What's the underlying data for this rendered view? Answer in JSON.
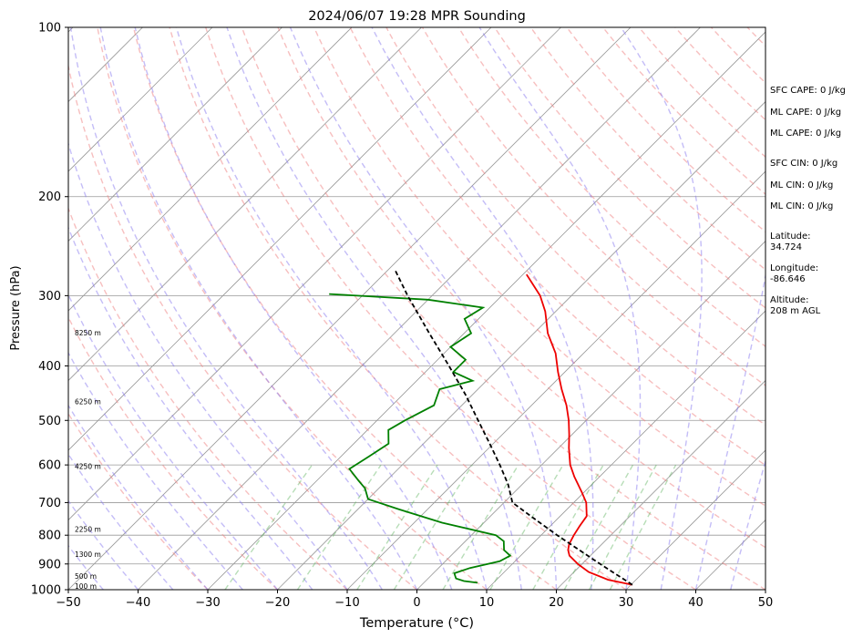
{
  "chart_data": {
    "type": "line",
    "title": "2024/06/07 19:28 MPR Sounding",
    "xlabel": "Temperature (°C)",
    "ylabel": "Pressure (hPa)",
    "xlim": [
      -50,
      50
    ],
    "ylim": [
      1000,
      100
    ],
    "y_scale": "log",
    "skew": "45-degree skew-T",
    "grid": true,
    "x_ticks": [
      "−50",
      "−40",
      "−30",
      "−20",
      "−10",
      "0",
      "10",
      "20",
      "30",
      "40",
      "50"
    ],
    "x_tick_values": [
      -50,
      -40,
      -30,
      -20,
      -10,
      0,
      10,
      20,
      30,
      40,
      50
    ],
    "y_ticks": [
      "1000",
      "900",
      "800",
      "700",
      "600",
      "500",
      "400",
      "300",
      "200",
      "100"
    ],
    "y_tick_values": [
      1000,
      900,
      800,
      700,
      600,
      500,
      400,
      300,
      200,
      100
    ],
    "colors": {
      "temperature": "#ee0000",
      "dewpoint": "#008000",
      "parcel": "#000000",
      "dry_adiabats": "#f08080",
      "moist_adiabats": "#8a7cf0",
      "mixing_ratio": "#5fb45f",
      "isotherms": "#999999",
      "isobars": "#999999"
    },
    "series": [
      {
        "name": "Temperature",
        "style": "solid",
        "points": [
          {
            "p": 980,
            "t": 30.2
          },
          {
            "p": 960,
            "t": 26.0
          },
          {
            "p": 930,
            "t": 22.1
          },
          {
            "p": 900,
            "t": 19.4
          },
          {
            "p": 870,
            "t": 17.0
          },
          {
            "p": 850,
            "t": 16.0
          },
          {
            "p": 830,
            "t": 15.3
          },
          {
            "p": 800,
            "t": 14.7
          },
          {
            "p": 770,
            "t": 14.2
          },
          {
            "p": 740,
            "t": 13.8
          },
          {
            "p": 700,
            "t": 11.8
          },
          {
            "p": 670,
            "t": 9.6
          },
          {
            "p": 630,
            "t": 6.4
          },
          {
            "p": 600,
            "t": 4.1
          },
          {
            "p": 560,
            "t": 1.5
          },
          {
            "p": 530,
            "t": -0.4
          },
          {
            "p": 500,
            "t": -2.5
          },
          {
            "p": 470,
            "t": -5.0
          },
          {
            "p": 440,
            "t": -8.0
          },
          {
            "p": 410,
            "t": -11.0
          },
          {
            "p": 380,
            "t": -14.0
          },
          {
            "p": 350,
            "t": -18.0
          },
          {
            "p": 320,
            "t": -21.5
          },
          {
            "p": 300,
            "t": -24.5
          },
          {
            "p": 275,
            "t": -29.5
          }
        ]
      },
      {
        "name": "Dewpoint",
        "style": "solid",
        "points": [
          {
            "p": 972,
            "t": 7.7
          },
          {
            "p": 965,
            "t": 5.5
          },
          {
            "p": 955,
            "t": 4.0
          },
          {
            "p": 935,
            "t": 3.0
          },
          {
            "p": 915,
            "t": 4.5
          },
          {
            "p": 890,
            "t": 7.8
          },
          {
            "p": 870,
            "t": 8.5
          },
          {
            "p": 850,
            "t": 6.8
          },
          {
            "p": 820,
            "t": 5.5
          },
          {
            "p": 800,
            "t": 3.5
          },
          {
            "p": 760,
            "t": -6.0
          },
          {
            "p": 720,
            "t": -14.0
          },
          {
            "p": 690,
            "t": -20.0
          },
          {
            "p": 660,
            "t": -22.0
          },
          {
            "p": 640,
            "t": -24.0
          },
          {
            "p": 610,
            "t": -27.0
          },
          {
            "p": 580,
            "t": -26.0
          },
          {
            "p": 550,
            "t": -25.0
          },
          {
            "p": 520,
            "t": -27.0
          },
          {
            "p": 500,
            "t": -26.0
          },
          {
            "p": 470,
            "t": -24.0
          },
          {
            "p": 440,
            "t": -25.5
          },
          {
            "p": 425,
            "t": -22.0
          },
          {
            "p": 410,
            "t": -26.0
          },
          {
            "p": 390,
            "t": -26.0
          },
          {
            "p": 370,
            "t": -30.0
          },
          {
            "p": 350,
            "t": -29.0
          },
          {
            "p": 330,
            "t": -32.0
          },
          {
            "p": 315,
            "t": -31.0
          },
          {
            "p": 305,
            "t": -40.0
          },
          {
            "p": 298,
            "t": -55.0
          }
        ]
      },
      {
        "name": "Parcel",
        "style": "dashed",
        "points": [
          {
            "p": 980,
            "t": 30.2
          },
          {
            "p": 900,
            "t": 22.6
          },
          {
            "p": 800,
            "t": 12.3
          },
          {
            "p": 750,
            "t": 6.9
          },
          {
            "p": 700,
            "t": 1.2
          },
          {
            "p": 650,
            "t": -2.0
          },
          {
            "p": 600,
            "t": -6.0
          },
          {
            "p": 550,
            "t": -10.5
          },
          {
            "p": 500,
            "t": -15.5
          },
          {
            "p": 450,
            "t": -21.0
          },
          {
            "p": 400,
            "t": -27.5
          },
          {
            "p": 350,
            "t": -35.0
          },
          {
            "p": 300,
            "t": -43.5
          },
          {
            "p": 270,
            "t": -49.0
          }
        ]
      }
    ],
    "height_labels": [
      {
        "label": "100 m",
        "p": 985
      },
      {
        "label": "500 m",
        "p": 945
      },
      {
        "label": "1300 m",
        "p": 865
      },
      {
        "label": "2250 m",
        "p": 780
      },
      {
        "label": "4250 m",
        "p": 603
      },
      {
        "label": "6250 m",
        "p": 463
      },
      {
        "label": "8250 m",
        "p": 349
      }
    ],
    "annotations": [
      "SFC CAPE: 0 J/kg",
      "ML CAPE: 0 J/kg",
      "ML CAPE: 0 J/kg",
      "SFC CIN: 0 J/kg",
      "ML CIN: 0 J/kg",
      "ML CIN: 0 J/kg",
      "Latitude:",
      "34.724",
      "Longitude:",
      "-86.646",
      "Altitude:",
      "208 m AGL"
    ]
  }
}
